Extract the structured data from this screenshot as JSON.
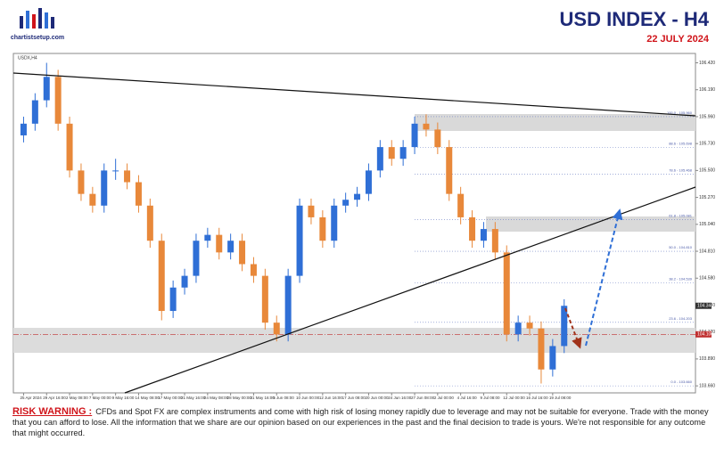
{
  "chart_data": {
    "type": "candlestick",
    "title": "USD INDEX  -  H4",
    "subtitle": "22 JULY 2024",
    "symbol": "USDX,H4",
    "logo": "chartistsetup.com",
    "categories": [
      "25 Apr 2024",
      null,
      "29 Apr 16:00",
      null,
      "2 May 08:00",
      null,
      "7 May 00:00",
      null,
      "9 May 16:00",
      null,
      "14 May 08:00",
      null,
      "17 May 00:00",
      null,
      "21 May 16:00",
      null,
      "24 May 08:00",
      null,
      "28 May 00:00",
      null,
      "31 May 16:00",
      null,
      "5 Jun 08:00",
      null,
      "10 Jun 00:00",
      null,
      "12 Jun 16:00",
      null,
      "17 Jun 08:00",
      null,
      "20 Jun 00:00",
      null,
      "24 Jun 16:00",
      null,
      "27 Jun 08:00",
      null,
      "2 Jul 00:00",
      null,
      "4 Jul 16:00",
      null,
      "9 Jul 08:00",
      null,
      "12 Jul 00:00",
      null,
      "16 Jul 16:00",
      null,
      "19 Jul 08:00",
      null
    ],
    "open": [
      105.8,
      105.9,
      106.1,
      106.3,
      105.9,
      105.5,
      105.3,
      105.2,
      105.5,
      105.5,
      105.4,
      105.2,
      104.9,
      104.3,
      104.5,
      104.6,
      104.9,
      104.95,
      104.8,
      104.9,
      104.7,
      104.6,
      104.2,
      104.1,
      104.6,
      105.2,
      105.1,
      104.9,
      105.2,
      105.25,
      105.3,
      105.5,
      105.7,
      105.6,
      105.7,
      105.9,
      105.85,
      105.7,
      105.3,
      105.1,
      104.9,
      105.0,
      104.8,
      104.1,
      104.2,
      104.15,
      103.8,
      104.0
    ],
    "high": [
      105.96,
      106.16,
      106.42,
      106.36,
      105.96,
      105.56,
      105.36,
      105.56,
      105.6,
      105.56,
      105.46,
      105.26,
      104.96,
      104.56,
      104.66,
      104.96,
      105.01,
      105.01,
      104.96,
      104.96,
      104.76,
      104.66,
      104.26,
      104.66,
      105.26,
      105.26,
      105.16,
      105.26,
      105.31,
      105.36,
      105.56,
      105.76,
      105.76,
      105.76,
      105.96,
      105.98,
      105.91,
      105.76,
      105.36,
      105.16,
      105.06,
      105.06,
      104.86,
      104.26,
      104.26,
      104.21,
      104.06,
      104.4
    ],
    "low": [
      105.74,
      105.84,
      106.04,
      105.84,
      105.44,
      105.24,
      105.14,
      105.14,
      105.42,
      105.34,
      105.14,
      104.84,
      104.22,
      104.24,
      104.44,
      104.54,
      104.84,
      104.74,
      104.74,
      104.64,
      104.54,
      104.14,
      104.04,
      104.04,
      104.54,
      105.04,
      104.84,
      104.84,
      105.14,
      105.19,
      105.24,
      105.44,
      105.54,
      105.54,
      105.64,
      105.79,
      105.64,
      105.24,
      105.04,
      104.84,
      104.84,
      104.74,
      104.04,
      104.04,
      104.09,
      103.68,
      103.74,
      103.94
    ],
    "close": [
      105.9,
      106.1,
      106.3,
      105.9,
      105.5,
      105.3,
      105.2,
      105.5,
      105.5,
      105.4,
      105.2,
      104.9,
      104.3,
      104.5,
      104.6,
      104.9,
      104.95,
      104.8,
      104.9,
      104.7,
      104.6,
      104.2,
      104.1,
      104.6,
      105.2,
      105.1,
      104.9,
      105.2,
      105.25,
      105.3,
      105.5,
      105.7,
      105.6,
      105.7,
      105.9,
      105.85,
      105.7,
      105.3,
      105.1,
      104.9,
      105.0,
      104.8,
      104.1,
      104.2,
      104.15,
      103.8,
      104.0,
      104.344
    ],
    "up_color": "#2f6fd6",
    "down_color": "#e8883a",
    "ylim": [
      103.6,
      106.5
    ],
    "yticks": [
      {
        "value": 103.66,
        "label": "103.660"
      },
      {
        "value": 103.89,
        "label": "103.890"
      },
      {
        "value": 104.12,
        "label": "104.120"
      },
      {
        "value": 104.35,
        "label": "104.350"
      },
      {
        "value": 104.58,
        "label": "104.580"
      },
      {
        "value": 104.81,
        "label": "104.810"
      },
      {
        "value": 105.04,
        "label": "105.040"
      },
      {
        "value": 105.27,
        "label": "105.270"
      },
      {
        "value": 105.5,
        "label": "105.500"
      },
      {
        "value": 105.73,
        "label": "105.730"
      },
      {
        "value": 105.96,
        "label": "105.960"
      },
      {
        "value": 106.19,
        "label": "106.190"
      },
      {
        "value": 106.42,
        "label": "106.420"
      }
    ],
    "fib_levels": [
      {
        "value": 105.96,
        "label": "100.0 - 105.960"
      },
      {
        "value": 105.698,
        "label": "88.6 - 105.698"
      },
      {
        "value": 105.468,
        "label": "78.6 - 105.468"
      },
      {
        "value": 105.081,
        "label": "61.8 - 105.081"
      },
      {
        "value": 104.81,
        "label": "50.0 - 104.810"
      },
      {
        "value": 104.539,
        "label": "38.2 - 104.539"
      },
      {
        "value": 104.203,
        "label": "23.6 - 104.203"
      },
      {
        "value": 103.66,
        "label": "0.0 - 103.660"
      }
    ],
    "price_line": {
      "value": 104.1,
      "label": "104.100"
    },
    "last_price": 104.344,
    "risk_title": "RISK WARNING :",
    "risk_text": "CFDs and Spot FX are complex instruments and come with high risk of losing money rapidly due to leverage and may not be suitable for everyone. Trade with the money that you can afford to lose. All the information that we share are our opinion based on our experiences in the past and the final decision to trade is yours. We're not responsible for any outcome that might occurred."
  }
}
